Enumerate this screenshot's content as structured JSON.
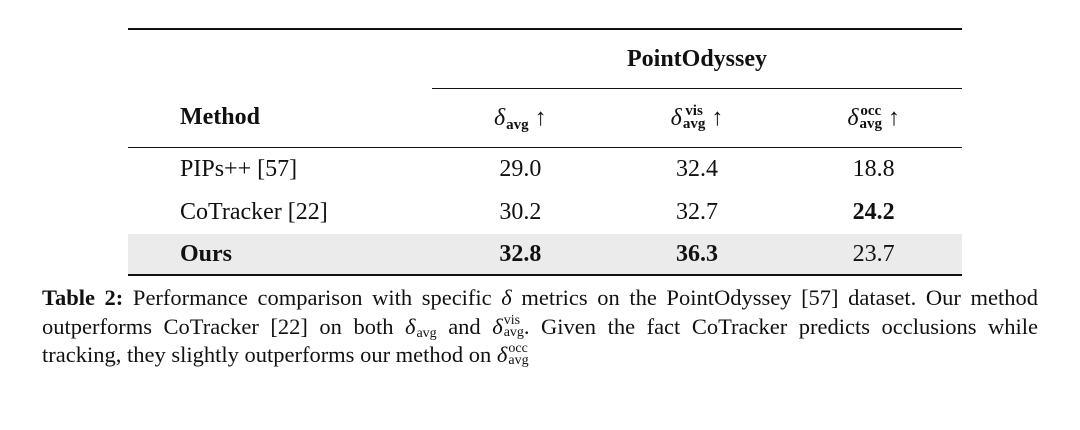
{
  "table": {
    "group_header": "PointOdyssey",
    "method_header": "Method",
    "columns": [
      {
        "symbol": "δ",
        "sub": "avg",
        "arrow": "↑"
      },
      {
        "symbol": "δ",
        "sup": "vis",
        "sub": "avg",
        "arrow": "↑"
      },
      {
        "symbol": "δ",
        "sup": "occ",
        "sub": "avg",
        "arrow": "↑"
      }
    ],
    "rows": [
      {
        "cells": [
          "PIPs++ [57]",
          "29.0",
          "32.4",
          "18.8"
        ],
        "bold": [
          false,
          false,
          false,
          false
        ],
        "highlight": false
      },
      {
        "cells": [
          "CoTracker [22]",
          "30.2",
          "32.7",
          "24.2"
        ],
        "bold": [
          false,
          false,
          false,
          true
        ],
        "highlight": false
      },
      {
        "cells": [
          "Ours",
          "32.8",
          "36.3",
          "23.7"
        ],
        "bold": [
          true,
          true,
          true,
          false
        ],
        "highlight": true
      }
    ]
  },
  "caption": {
    "label": "Table 2:",
    "segments": [
      " Performance comparison with specific ",
      {
        "symbol": "δ"
      },
      " metrics on the PointOdyssey [57] dataset. Our method outperforms CoTracker [22] on both ",
      {
        "symbol": "δ",
        "sub": "avg"
      },
      " and ",
      {
        "symbol": "δ",
        "sup": "vis",
        "sub": "avg"
      },
      ". Given the fact CoTracker predicts occlusions while tracking, they slightly outperforms our method on ",
      {
        "symbol": "δ",
        "sup": "occ",
        "sub": "avg"
      }
    ]
  }
}
